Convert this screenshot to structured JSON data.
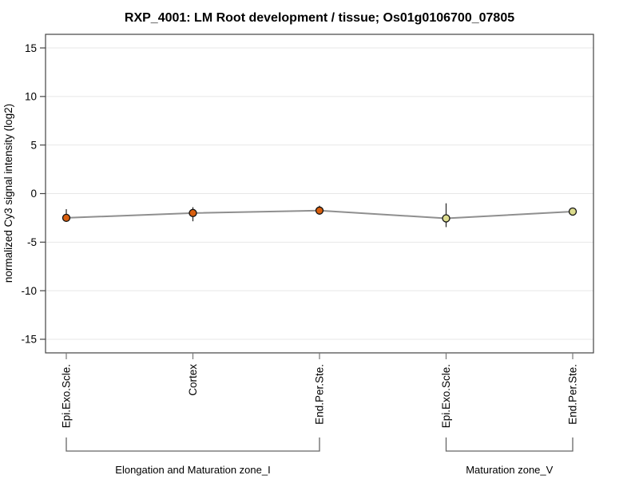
{
  "chart_data": {
    "type": "line",
    "title": "RXP_4001: LM Root development / tissue; Os01g0106700_07805",
    "xlabel": "",
    "ylabel": "normalized Cy3 signal intensity (log2)",
    "ylim": [
      -16.4,
      16.4
    ],
    "yticks": [
      15,
      10,
      5,
      0,
      -5,
      -10,
      -15
    ],
    "grid": true,
    "legend": "none",
    "categories": [
      "Epi.Exo.Scle.",
      "Cortex",
      "End.Per.Ste.",
      "Epi.Exo.Scle.",
      "End.Per.Ste."
    ],
    "series": [
      {
        "name": "normalized Cy3 signal intensity (log2)",
        "values": [
          -2.5,
          -2.0,
          -1.75,
          -2.55,
          -1.85
        ],
        "error_high": [
          -1.6,
          -1.4,
          -1.25,
          -1.0,
          -1.45
        ],
        "error_low": [
          -2.9,
          -2.85,
          -2.1,
          -3.45,
          -2.25
        ]
      }
    ],
    "point_colors": [
      "#d95f0e",
      "#d95f0e",
      "#d95f0e",
      "#dcdc8e",
      "#dcdc8e"
    ],
    "group_colors": {
      "zone_I": "#d95f0e",
      "zone_V": "#dcdc8e"
    },
    "line_color": "#8f8f8f",
    "error_bar_color": "#222222",
    "grid_color": "#e7e7e7",
    "axis_color": "#444444",
    "bracket_color": "#666666",
    "groups": [
      {
        "label": "Elongation and Maturation zone_I",
        "start": 0,
        "end": 2
      },
      {
        "label": "Maturation zone_V",
        "start": 3,
        "end": 4
      }
    ]
  }
}
